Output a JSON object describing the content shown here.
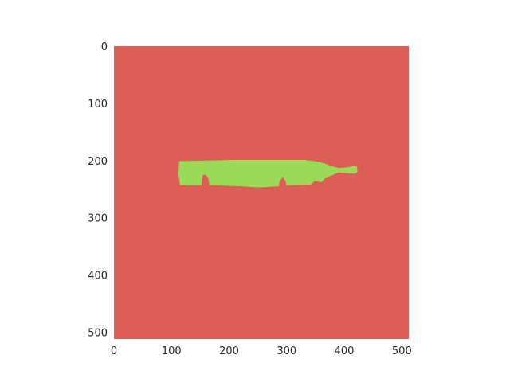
{
  "chart_data": {
    "type": "heatmap",
    "title": "",
    "xlabel": "",
    "ylabel": "",
    "xlim": [
      0,
      512
    ],
    "ylim": [
      512,
      0
    ],
    "x_ticks": [
      0,
      100,
      200,
      300,
      400,
      500
    ],
    "y_ticks": [
      0,
      100,
      200,
      300,
      400,
      500
    ],
    "grid": false,
    "legend": "none",
    "classes": [
      {
        "id": 0,
        "color": "#db5f57"
      },
      {
        "id": 1,
        "color": "#99db57"
      }
    ],
    "background_class": 0,
    "mask_class": 1,
    "mask_outline": [
      [
        113,
        201
      ],
      [
        160,
        200
      ],
      [
        210,
        199
      ],
      [
        260,
        199
      ],
      [
        300,
        199
      ],
      [
        330,
        199
      ],
      [
        350,
        201
      ],
      [
        365,
        205
      ],
      [
        378,
        210
      ],
      [
        390,
        213
      ],
      [
        405,
        212
      ],
      [
        418,
        209
      ],
      [
        422,
        211
      ],
      [
        423,
        220
      ],
      [
        418,
        223
      ],
      [
        405,
        222
      ],
      [
        390,
        221
      ],
      [
        378,
        226
      ],
      [
        366,
        232
      ],
      [
        360,
        238
      ],
      [
        352,
        236
      ],
      [
        348,
        236
      ],
      [
        343,
        242
      ],
      [
        310,
        243
      ],
      [
        300,
        244
      ],
      [
        298,
        236
      ],
      [
        293,
        229
      ],
      [
        288,
        236
      ],
      [
        286,
        245
      ],
      [
        270,
        246
      ],
      [
        250,
        247
      ],
      [
        220,
        245
      ],
      [
        170,
        243
      ],
      [
        166,
        243
      ],
      [
        164,
        232
      ],
      [
        160,
        225
      ],
      [
        154,
        225
      ],
      [
        152,
        243
      ],
      [
        115,
        243
      ],
      [
        112,
        225
      ]
    ]
  }
}
